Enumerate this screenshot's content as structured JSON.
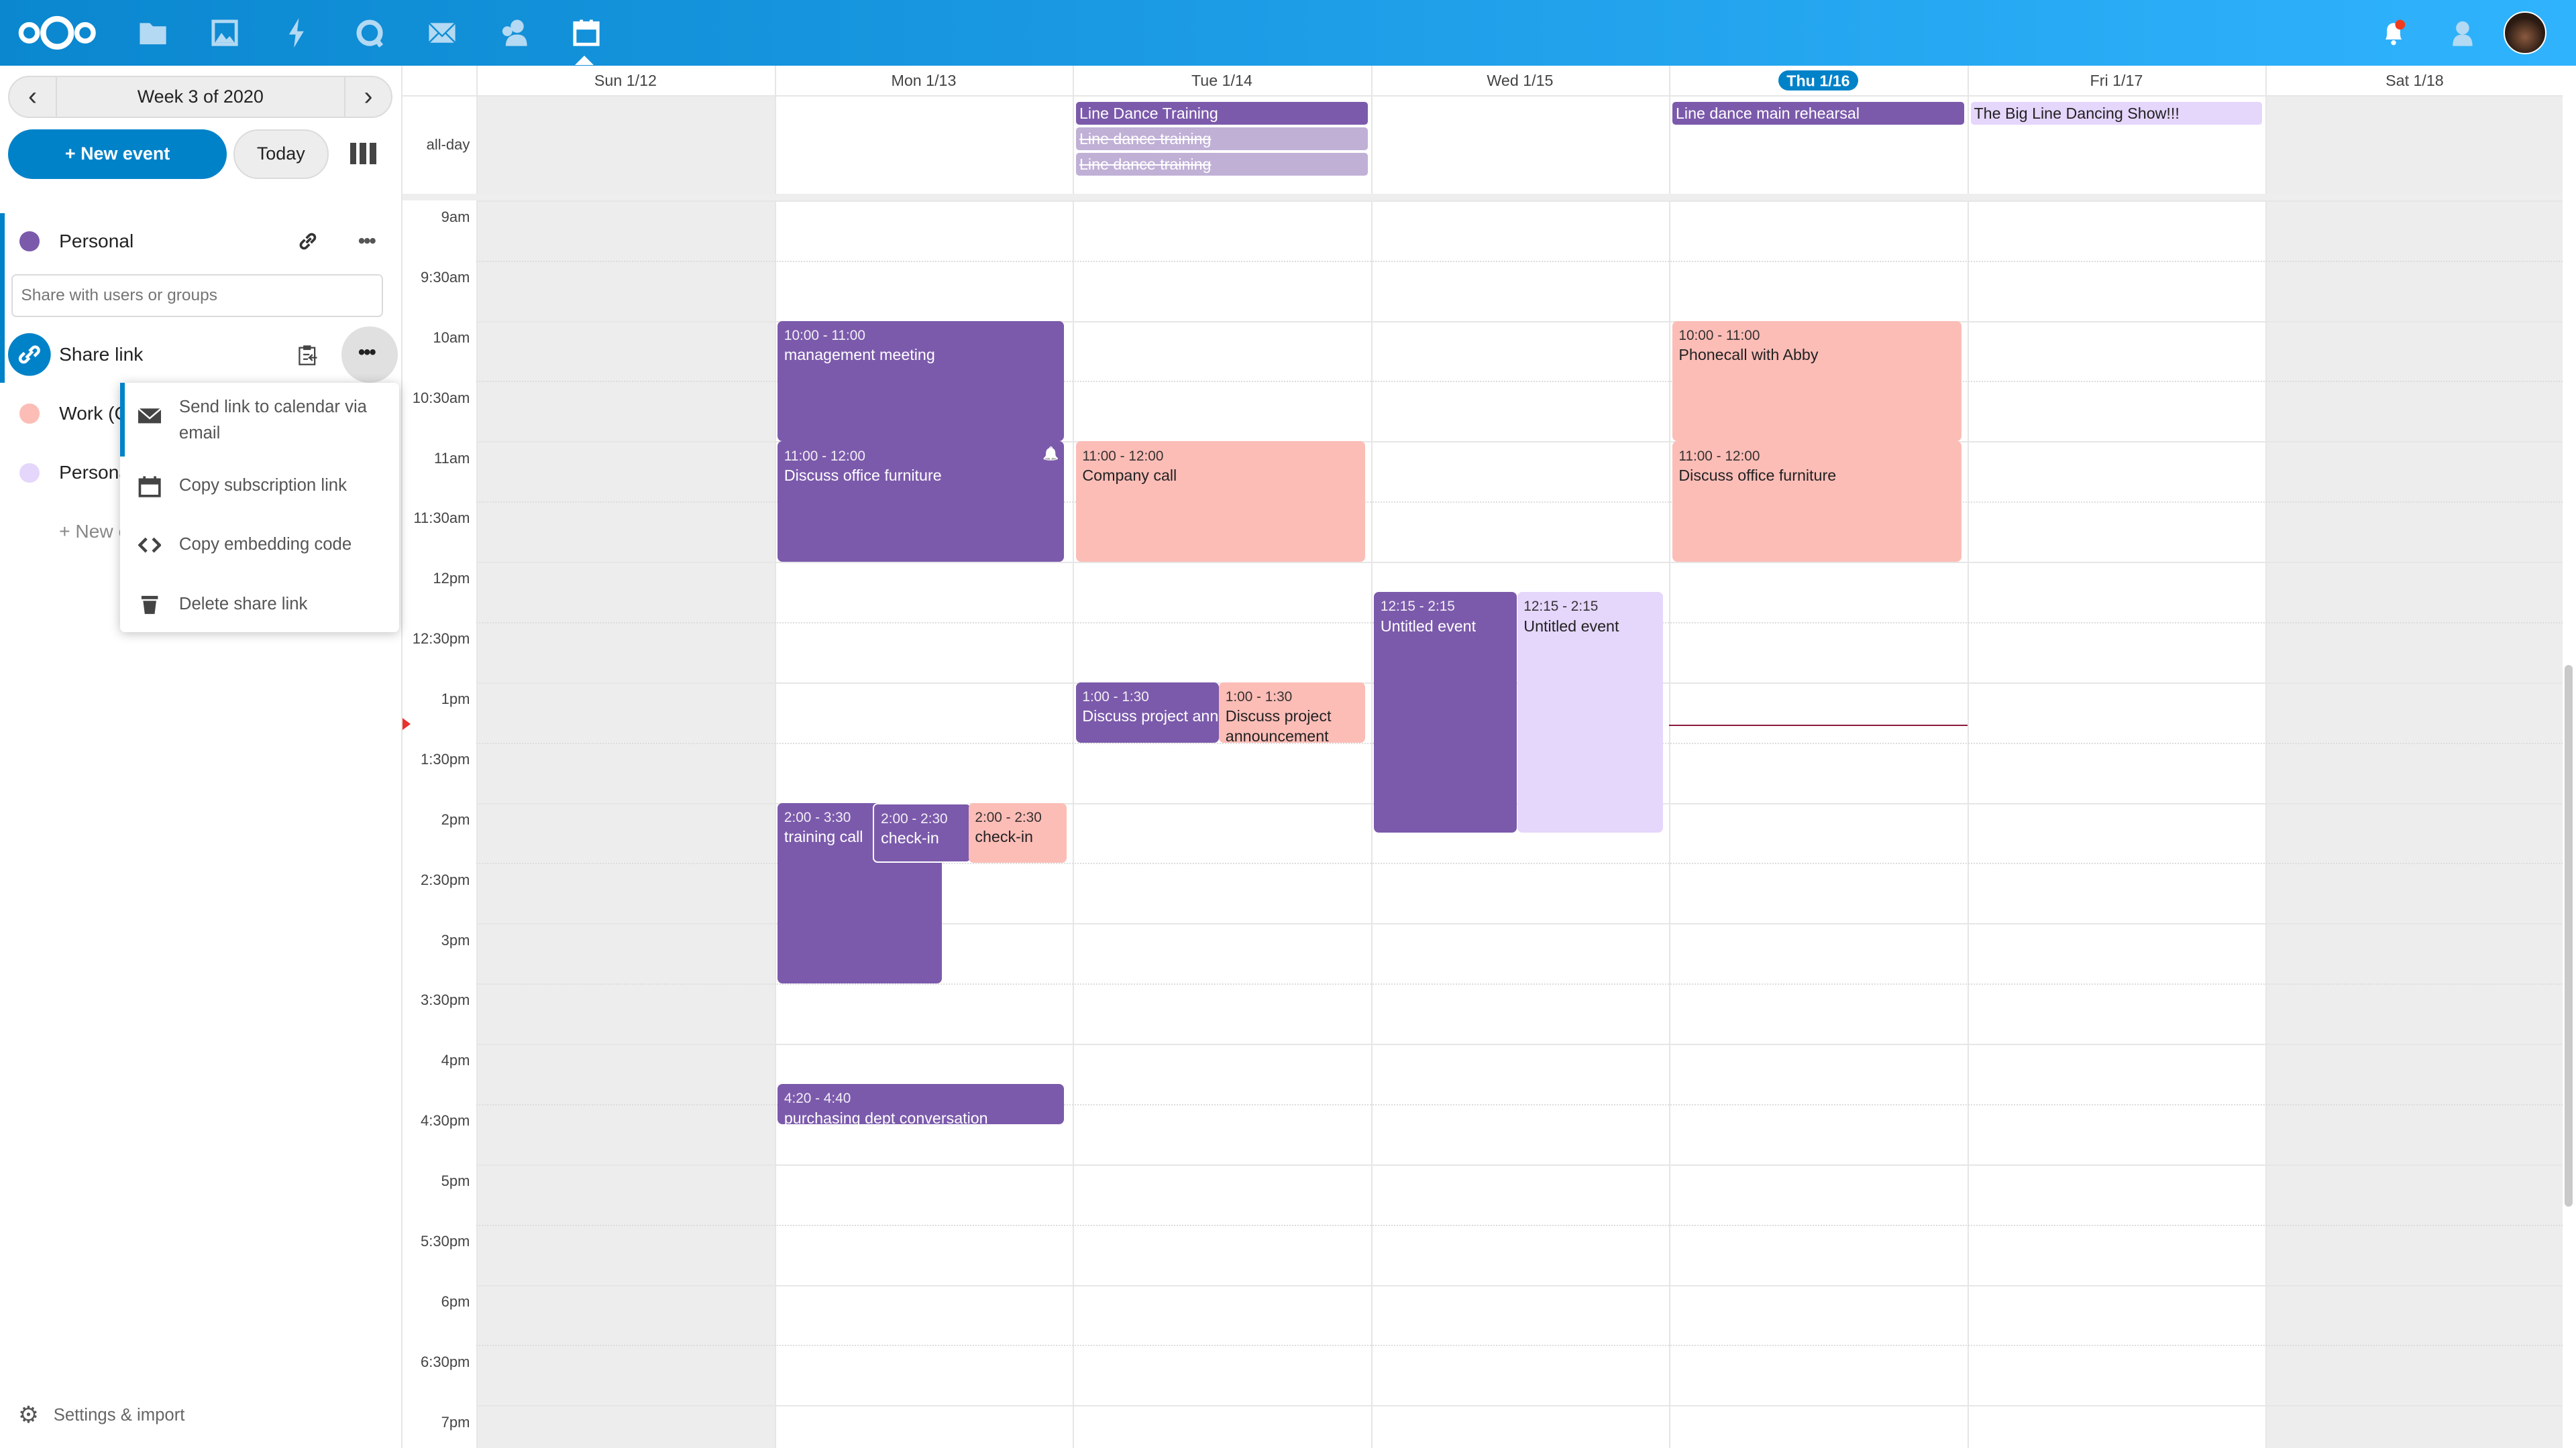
{
  "colors": {
    "purple": "#7b5aab",
    "pink": "#fcbdb7",
    "lavender": "#e5d6fb",
    "struck": "#c0b0d6",
    "accent": "#0082c9",
    "weekend": "#ededed"
  },
  "topbar": {
    "apps": [
      "files-icon",
      "photos-icon",
      "activity-icon",
      "talk-icon",
      "mail-icon",
      "contacts-icon",
      "calendar-icon"
    ],
    "active_app": "calendar-icon",
    "notifications_badge": true
  },
  "sidebar": {
    "week_label": "Week 3 of 2020",
    "new_event": "+ New event",
    "today": "Today",
    "calendars": [
      {
        "name": "Personal",
        "color": "#7b5aab"
      },
      {
        "name": "Work (C",
        "color": "#fcbdb7"
      },
      {
        "name": "Persona",
        "color": "#e5d6fb"
      }
    ],
    "share_placeholder": "Share with users or groups",
    "share_link_label": "Share link",
    "new_calendar": "+ New c",
    "settings": "Settings & import",
    "menu": [
      {
        "icon": "mail-icon",
        "label": "Send link to calendar via email"
      },
      {
        "icon": "calendar-icon",
        "label": "Copy subscription link"
      },
      {
        "icon": "code-icon",
        "label": "Copy embedding code"
      },
      {
        "icon": "trash-icon",
        "label": "Delete share link"
      }
    ]
  },
  "calendar": {
    "allday_label": "all-day",
    "days": [
      "Sun 1/12",
      "Mon 1/13",
      "Tue 1/14",
      "Wed 1/15",
      "Thu 1/16",
      "Fri 1/17",
      "Sat 1/18"
    ],
    "today": "Thu 1/16",
    "hours": [
      "9am",
      "9:30am",
      "10am",
      "10:30am",
      "11am",
      "11:30am",
      "12pm",
      "12:30pm",
      "1pm",
      "1:30pm",
      "2pm",
      "2:30pm",
      "3pm",
      "3:30pm",
      "4pm",
      "4:30pm",
      "5pm",
      "5:30pm",
      "6pm",
      "6:30pm",
      "7pm"
    ],
    "now": "13:21",
    "allday_events": [
      {
        "day": "Tue 1/14",
        "title": "Line Dance Training",
        "color": "purple",
        "struck": false
      },
      {
        "day": "Tue 1/14",
        "title": "Line dance training",
        "color": "struck",
        "struck": true
      },
      {
        "day": "Tue 1/14",
        "title": "Line dance training",
        "color": "struck",
        "struck": true
      },
      {
        "day": "Thu 1/16",
        "title": "Line dance main rehearsal",
        "color": "purple",
        "struck": false
      },
      {
        "day": "Fri 1/17",
        "title": "The Big Line Dancing Show!!!",
        "color": "lavender",
        "struck": false
      }
    ],
    "events": [
      {
        "day": "Mon 1/13",
        "time": "10:00 - 11:00",
        "start": 10,
        "end": 11,
        "title": "management meeting",
        "color": "purple"
      },
      {
        "day": "Mon 1/13",
        "time": "11:00 - 12:00",
        "start": 11,
        "end": 12,
        "title": "Discuss office furniture",
        "color": "purple",
        "alarm": true
      },
      {
        "day": "Mon 1/13",
        "time": "2:00 - 3:30",
        "start": 14,
        "end": 15.5,
        "title": "training call",
        "color": "purple"
      },
      {
        "day": "Mon 1/13",
        "time": "2:00 - 2:30",
        "start": 14,
        "end": 14.5,
        "title": "check-in",
        "color": "purple"
      },
      {
        "day": "Mon 1/13",
        "time": "2:00 - 2:30",
        "start": 14,
        "end": 14.5,
        "title": "check-in",
        "color": "pink"
      },
      {
        "day": "Mon 1/13",
        "time": "4:20 - 4:40",
        "start": 16.333,
        "end": 16.667,
        "title": "purchasing dept conversation",
        "color": "purple"
      },
      {
        "day": "Tue 1/14",
        "time": "11:00 - 12:00",
        "start": 11,
        "end": 12,
        "title": "Company call",
        "color": "pink"
      },
      {
        "day": "Tue 1/14",
        "time": "1:00 - 1:30",
        "start": 13,
        "end": 13.5,
        "title": "Discuss project announcement",
        "color": "purple"
      },
      {
        "day": "Tue 1/14",
        "time": "1:00 - 1:30",
        "start": 13,
        "end": 13.5,
        "title": "Discuss project announcement",
        "color": "pink"
      },
      {
        "day": "Wed 1/15",
        "time": "12:15 - 2:15",
        "start": 12.25,
        "end": 14.25,
        "title": "Untitled event",
        "color": "purple"
      },
      {
        "day": "Wed 1/15",
        "time": "12:15 - 2:15",
        "start": 12.25,
        "end": 14.25,
        "title": "Untitled event",
        "color": "lavender"
      },
      {
        "day": "Thu 1/16",
        "time": "10:00 - 11:00",
        "start": 10,
        "end": 11,
        "title": "Phonecall with Abby",
        "color": "pink"
      },
      {
        "day": "Thu 1/16",
        "time": "11:00 - 12:00",
        "start": 11,
        "end": 12,
        "title": "Discuss office furniture",
        "color": "pink"
      }
    ]
  }
}
